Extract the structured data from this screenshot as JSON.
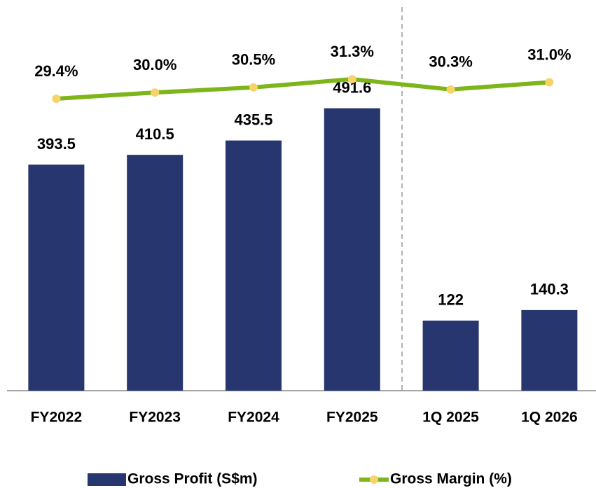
{
  "chart_data": {
    "type": "bar",
    "categories": [
      "FY2022",
      "FY2023",
      "FY2024",
      "FY2025",
      "1Q 2025",
      "1Q 2026"
    ],
    "series": [
      {
        "name": "Gross Profit (S$m)",
        "type": "bar",
        "color": "#27366f",
        "values": [
          393.5,
          410.5,
          435.5,
          491.6,
          122.0,
          140.3
        ]
      },
      {
        "name": "Gross Margin (%)",
        "type": "line",
        "axis": "y2",
        "color": "#7db51a",
        "marker_color": "#f7d46a",
        "values": [
          29.4,
          30.0,
          30.5,
          31.3,
          30.3,
          31.0
        ],
        "value_labels": [
          "29.4%",
          "30.0%",
          "30.5%",
          "31.3%",
          "30.3%",
          "31.0%"
        ]
      }
    ],
    "ylim": [
      0,
      680
    ],
    "y2lim": [
      1,
      39
    ],
    "grid": false,
    "legend": "bottom"
  }
}
